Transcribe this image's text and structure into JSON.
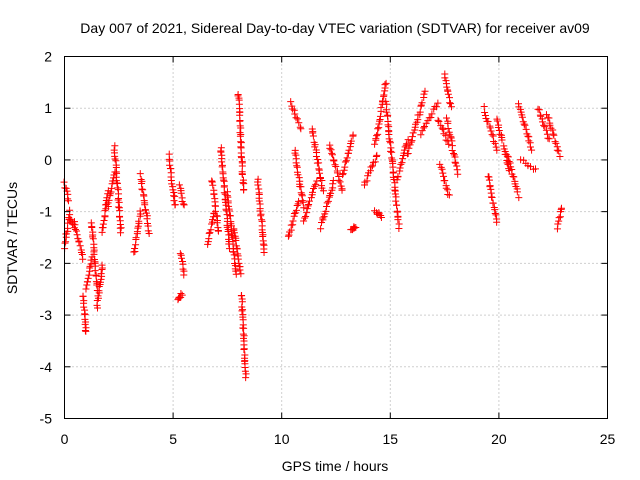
{
  "chart_data": {
    "type": "scatter",
    "title": "Day 007 of 2021, Sidereal Day-to-day VTEC variation (SDTVAR) for receiver av09",
    "xlabel": "GPS time / hours",
    "ylabel": "SDTVAR / TECUs",
    "xlim": [
      0,
      25
    ],
    "ylim": [
      -5,
      2
    ],
    "xticks": [
      0,
      5,
      10,
      15,
      20,
      25
    ],
    "yticks": [
      -5,
      -4,
      -3,
      -2,
      -1,
      0,
      1,
      2
    ],
    "grid": true,
    "marker": "plus",
    "color": "#ff0000",
    "series": [
      {
        "name": "SDTVAR",
        "segments": [
          {
            "x": [
              0.0,
              0.25
            ],
            "y": [
              -1.7,
              -1.0
            ]
          },
          {
            "x": [
              0.0,
              0.2
            ],
            "y": [
              -0.45,
              -0.8
            ]
          },
          {
            "x": [
              0.2,
              0.45
            ],
            "y": [
              -1.1,
              -1.3
            ]
          },
          {
            "x": [
              0.45,
              0.85
            ],
            "y": [
              -1.2,
              -1.9
            ]
          },
          {
            "x": [
              0.85,
              1.0
            ],
            "y": [
              -2.6,
              -3.35
            ]
          },
          {
            "x": [
              1.0,
              1.25
            ],
            "y": [
              -2.5,
              -1.9
            ]
          },
          {
            "x": [
              1.25,
              1.5
            ],
            "y": [
              -1.2,
              -2.5
            ]
          },
          {
            "x": [
              1.5,
              1.75
            ],
            "y": [
              -2.85,
              -2.0
            ]
          },
          {
            "x": [
              1.75,
              2.0
            ],
            "y": [
              -1.4,
              -0.6
            ]
          },
          {
            "x": [
              2.0,
              2.3
            ],
            "y": [
              -0.9,
              -0.2
            ]
          },
          {
            "x": [
              2.3,
              2.6
            ],
            "y": [
              0.25,
              -1.4
            ]
          },
          {
            "x": [
              3.2,
              3.5
            ],
            "y": [
              -1.8,
              -1.0
            ]
          },
          {
            "x": [
              3.5,
              3.9
            ],
            "y": [
              -0.3,
              -1.4
            ]
          },
          {
            "x": [
              4.8,
              5.1
            ],
            "y": [
              0.1,
              -0.9
            ]
          },
          {
            "x": [
              5.2,
              5.4
            ],
            "y": [
              -2.7,
              -2.6
            ]
          },
          {
            "x": [
              5.35,
              5.5
            ],
            "y": [
              -1.8,
              -2.2
            ]
          },
          {
            "x": [
              5.3,
              5.5
            ],
            "y": [
              -0.5,
              -0.9
            ]
          },
          {
            "x": [
              6.6,
              6.9
            ],
            "y": [
              -1.6,
              -1.0
            ]
          },
          {
            "x": [
              6.8,
              7.1
            ],
            "y": [
              -0.4,
              -1.4
            ]
          },
          {
            "x": [
              7.2,
              7.6
            ],
            "y": [
              0.25,
              -1.7
            ]
          },
          {
            "x": [
              7.5,
              7.9
            ],
            "y": [
              -0.6,
              -2.2
            ]
          },
          {
            "x": [
              7.8,
              8.1
            ],
            "y": [
              -1.3,
              -2.2
            ]
          },
          {
            "x": [
              8.0,
              8.25
            ],
            "y": [
              1.3,
              -0.6
            ]
          },
          {
            "x": [
              8.15,
              8.35
            ],
            "y": [
              -2.6,
              -4.2
            ]
          },
          {
            "x": [
              8.9,
              9.2
            ],
            "y": [
              -0.4,
              -1.8
            ]
          },
          {
            "x": [
              10.3,
              10.8
            ],
            "y": [
              -1.5,
              -0.8
            ]
          },
          {
            "x": [
              10.4,
              10.9
            ],
            "y": [
              1.1,
              0.6
            ]
          },
          {
            "x": [
              10.6,
              11.0
            ],
            "y": [
              0.2,
              -0.9
            ]
          },
          {
            "x": [
              11.0,
              11.6
            ],
            "y": [
              -1.2,
              -0.4
            ]
          },
          {
            "x": [
              11.4,
              11.9
            ],
            "y": [
              0.6,
              -0.6
            ]
          },
          {
            "x": [
              11.8,
              12.4
            ],
            "y": [
              -1.3,
              -0.4
            ]
          },
          {
            "x": [
              12.2,
              12.8
            ],
            "y": [
              0.3,
              -0.6
            ]
          },
          {
            "x": [
              12.8,
              13.3
            ],
            "y": [
              -0.3,
              0.5
            ]
          },
          {
            "x": [
              13.2,
              13.4
            ],
            "y": [
              -1.35,
              -1.3
            ]
          },
          {
            "x": [
              13.8,
              14.4
            ],
            "y": [
              -0.5,
              0.1
            ]
          },
          {
            "x": [
              14.3,
              14.8
            ],
            "y": [
              0.3,
              1.5
            ]
          },
          {
            "x": [
              14.3,
              14.6
            ],
            "y": [
              -1.0,
              -1.1
            ]
          },
          {
            "x": [
              14.8,
              15.4
            ],
            "y": [
              1.1,
              -1.3
            ]
          },
          {
            "x": [
              15.3,
              15.8
            ],
            "y": [
              -0.4,
              0.4
            ]
          },
          {
            "x": [
              15.8,
              16.6
            ],
            "y": [
              0.1,
              1.3
            ]
          },
          {
            "x": [
              16.4,
              17.2
            ],
            "y": [
              0.5,
              1.1
            ]
          },
          {
            "x": [
              17.2,
              17.7
            ],
            "y": [
              0.8,
              0.3
            ]
          },
          {
            "x": [
              17.5,
              17.8
            ],
            "y": [
              1.65,
              1.0
            ]
          },
          {
            "x": [
              17.3,
              17.7
            ],
            "y": [
              -0.1,
              -0.7
            ]
          },
          {
            "x": [
              17.6,
              18.1
            ],
            "y": [
              0.8,
              -0.25
            ]
          },
          {
            "x": [
              19.3,
              19.9
            ],
            "y": [
              1.0,
              0.2
            ]
          },
          {
            "x": [
              19.5,
              19.9
            ],
            "y": [
              -0.3,
              -1.2
            ]
          },
          {
            "x": [
              19.9,
              20.5
            ],
            "y": [
              0.8,
              -0.2
            ]
          },
          {
            "x": [
              20.4,
              20.9
            ],
            "y": [
              0.1,
              -0.7
            ]
          },
          {
            "x": [
              20.9,
              21.5
            ],
            "y": [
              1.1,
              0.2
            ]
          },
          {
            "x": [
              21.0,
              21.7
            ],
            "y": [
              0.0,
              -0.2
            ]
          },
          {
            "x": [
              21.8,
              22.3
            ],
            "y": [
              1.0,
              0.4
            ]
          },
          {
            "x": [
              22.2,
              22.8
            ],
            "y": [
              0.9,
              0.1
            ]
          },
          {
            "x": [
              22.7,
              22.9
            ],
            "y": [
              -1.3,
              -0.9
            ]
          }
        ]
      }
    ]
  }
}
